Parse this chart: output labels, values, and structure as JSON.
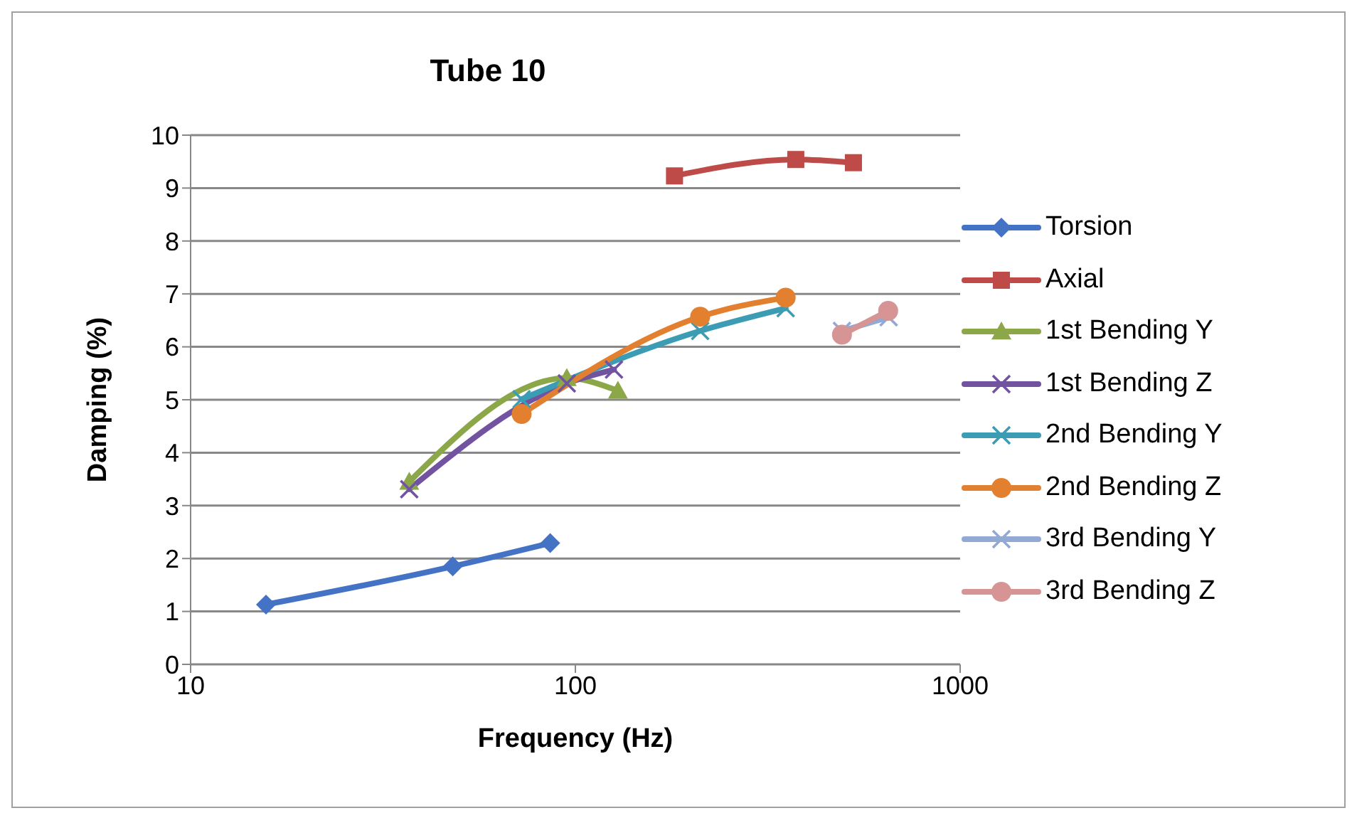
{
  "chart_data": {
    "type": "line",
    "title": "Tube 10",
    "xlabel": "Frequency (Hz)",
    "ylabel": "Damping (%)",
    "log": "x",
    "xlim": [
      10,
      1000
    ],
    "xticks": [
      10,
      100,
      1000
    ],
    "ylim": [
      0,
      10
    ],
    "yticks": [
      0,
      1,
      2,
      3,
      4,
      5,
      6,
      7,
      8,
      9,
      10
    ],
    "grid": "y",
    "legend": "right",
    "series": [
      {
        "name": "Torsion",
        "color": "#4472c4",
        "marker": "diamond",
        "x": [
          15.7,
          48,
          86
        ],
        "values": [
          1.13,
          1.85,
          2.29
        ]
      },
      {
        "name": "Axial",
        "color": "#be4b48",
        "marker": "square",
        "x": [
          181,
          374,
          528
        ],
        "values": [
          9.23,
          9.54,
          9.48
        ]
      },
      {
        "name": "1st Bending Y",
        "color": "#8ca748",
        "marker": "triangle",
        "x": [
          37,
          95,
          129
        ],
        "values": [
          3.45,
          5.41,
          5.17
        ]
      },
      {
        "name": "1st Bending Z",
        "color": "#7153a0",
        "marker": "cross",
        "x": [
          37,
          95,
          126
        ],
        "values": [
          3.31,
          5.31,
          5.57
        ]
      },
      {
        "name": "2nd Bending Y",
        "color": "#3c9cb4",
        "marker": "cross",
        "x": [
          72.5,
          211,
          352
        ],
        "values": [
          5.01,
          6.3,
          6.73
        ]
      },
      {
        "name": "2nd Bending Z",
        "color": "#e3802f",
        "marker": "circle",
        "x": [
          72.5,
          211,
          352
        ],
        "values": [
          4.73,
          6.57,
          6.93
        ]
      },
      {
        "name": "3rd Bending Y",
        "color": "#92a9d4",
        "marker": "cross",
        "x": [
          493,
          652
        ],
        "values": [
          6.3,
          6.56
        ]
      },
      {
        "name": "3rd Bending Z",
        "color": "#d69494",
        "marker": "circle",
        "x": [
          493,
          650
        ],
        "values": [
          6.23,
          6.68
        ]
      }
    ]
  }
}
